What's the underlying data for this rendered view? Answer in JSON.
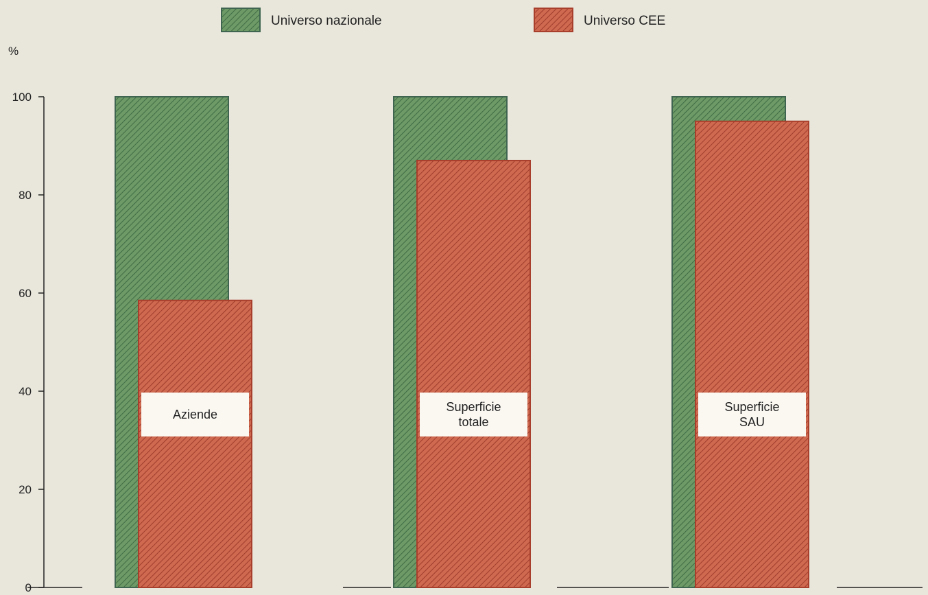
{
  "chart_data": {
    "type": "bar",
    "title": "",
    "xlabel": "",
    "ylabel": "%",
    "ylim": [
      0,
      100
    ],
    "yticks": [
      0,
      20,
      40,
      60,
      80,
      100
    ],
    "grid": false,
    "legend_placement": "top",
    "categories": [
      [
        "Aziende"
      ],
      [
        "Superficie",
        "totale"
      ],
      [
        "Superficie",
        "SAU"
      ]
    ],
    "series": [
      {
        "name": "Universo nazionale",
        "values": [
          100,
          100,
          100
        ],
        "color": "#6e9a67"
      },
      {
        "name": "Universo CEE",
        "values": [
          58.5,
          87,
          95
        ],
        "color": "#c65a45"
      }
    ]
  }
}
